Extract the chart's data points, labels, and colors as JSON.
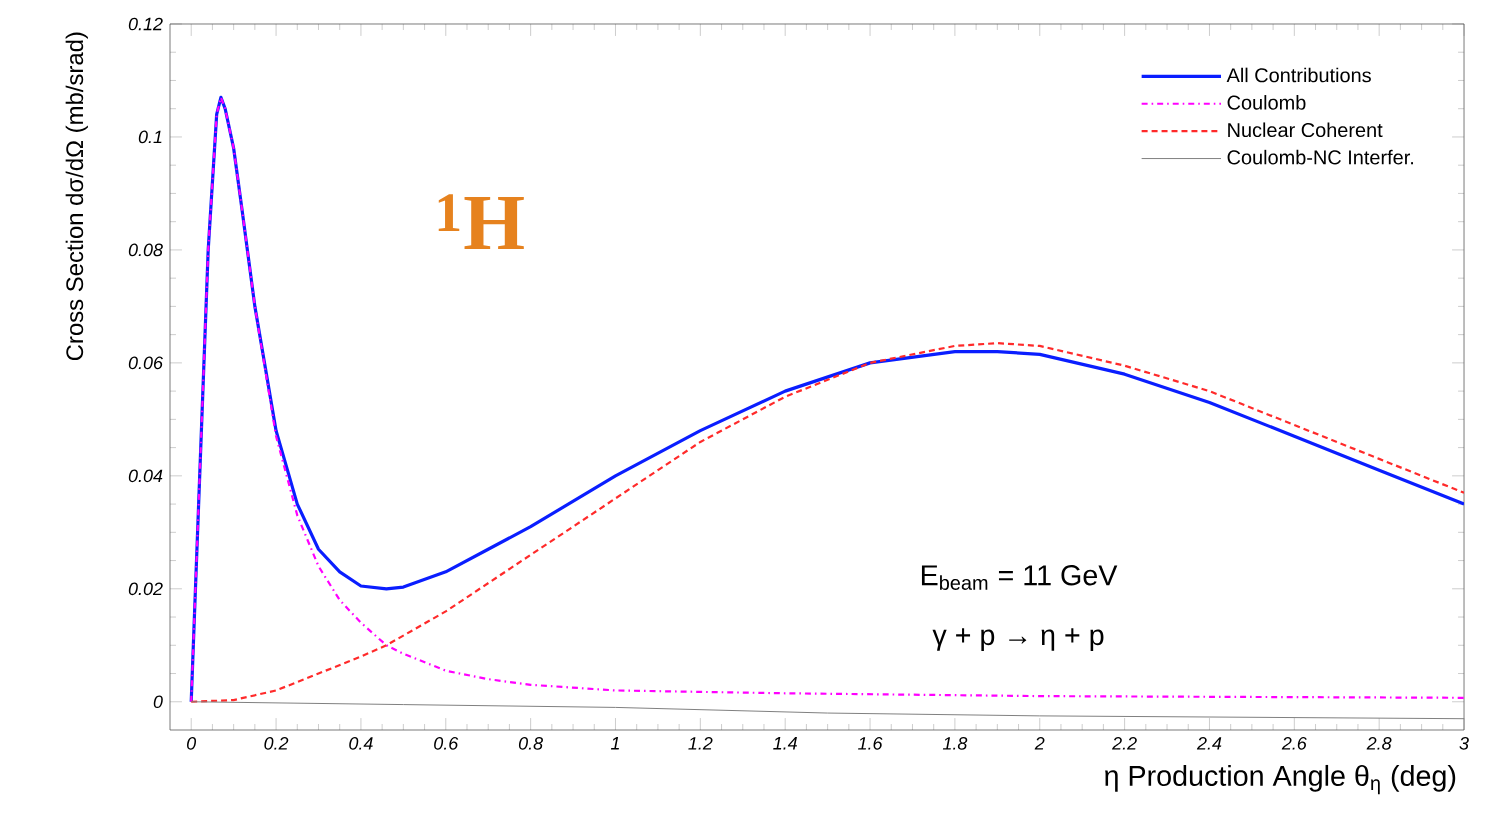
{
  "chart_data": {
    "type": "line",
    "xlabel": "η Production Angle   θ$_{η}$ (deg)",
    "ylabel": "Cross Section dσ/dΩ (mb/srad)",
    "xlim": [
      -0.05,
      3
    ],
    "ylim": [
      -0.005,
      0.12
    ],
    "xticks": [
      0,
      0.2,
      0.4,
      0.6,
      0.8,
      1,
      1.2,
      1.4,
      1.6,
      1.8,
      2,
      2.2,
      2.4,
      2.6,
      2.8,
      3
    ],
    "yticks": [
      0,
      0.02,
      0.04,
      0.06,
      0.08,
      0.1,
      0.12
    ],
    "grid": false,
    "legend": "top right",
    "marker": "none",
    "annotations": [
      "$^{1}$H",
      "E$_{beam}$ = 11 GeV",
      "γ + p  →  η + p"
    ],
    "series": [
      {
        "name": "All Contributions",
        "color": "#0a1eff",
        "line_style": "solid",
        "x": [
          0,
          0.02,
          0.04,
          0.06,
          0.07,
          0.08,
          0.1,
          0.12,
          0.15,
          0.2,
          0.25,
          0.3,
          0.35,
          0.4,
          0.46,
          0.5,
          0.6,
          0.7,
          0.8,
          1.0,
          1.2,
          1.4,
          1.6,
          1.8,
          1.9,
          2.0,
          2.2,
          2.4,
          2.6,
          2.8,
          3.0
        ],
        "values": [
          0,
          0.04,
          0.08,
          0.104,
          0.107,
          0.105,
          0.098,
          0.087,
          0.07,
          0.048,
          0.035,
          0.027,
          0.023,
          0.0205,
          0.02,
          0.0203,
          0.023,
          0.027,
          0.031,
          0.04,
          0.048,
          0.055,
          0.06,
          0.062,
          0.062,
          0.0615,
          0.058,
          0.053,
          0.047,
          0.041,
          0.035
        ]
      },
      {
        "name": "Coulomb",
        "color": "#ff00ff",
        "line_style": "dashdot",
        "x": [
          0,
          0.02,
          0.04,
          0.06,
          0.07,
          0.08,
          0.1,
          0.12,
          0.15,
          0.2,
          0.25,
          0.3,
          0.35,
          0.4,
          0.46,
          0.5,
          0.6,
          0.7,
          0.8,
          1.0,
          1.4,
          2.0,
          3.0
        ],
        "values": [
          0,
          0.04,
          0.08,
          0.104,
          0.107,
          0.105,
          0.098,
          0.087,
          0.07,
          0.047,
          0.033,
          0.024,
          0.018,
          0.014,
          0.01,
          0.0085,
          0.0055,
          0.004,
          0.003,
          0.002,
          0.0015,
          0.001,
          0.0007
        ]
      },
      {
        "name": "Nuclear Coherent",
        "color": "#ff2a2a",
        "line_style": "dashed",
        "x": [
          0,
          0.1,
          0.2,
          0.3,
          0.4,
          0.46,
          0.6,
          0.8,
          1.0,
          1.2,
          1.4,
          1.6,
          1.8,
          1.9,
          2.0,
          2.2,
          2.4,
          2.6,
          2.8,
          3.0
        ],
        "values": [
          0,
          0.0003,
          0.002,
          0.005,
          0.008,
          0.01,
          0.016,
          0.026,
          0.036,
          0.046,
          0.054,
          0.06,
          0.063,
          0.0635,
          0.063,
          0.0595,
          0.055,
          0.049,
          0.043,
          0.037
        ]
      },
      {
        "name": "Coulomb-NC Interfer.",
        "color": "#808080",
        "line_style": "solid",
        "x": [
          0,
          0.5,
          1.0,
          1.5,
          2.0,
          3.0
        ],
        "values": [
          0,
          -0.0005,
          -0.001,
          -0.002,
          -0.0025,
          -0.003
        ]
      }
    ]
  }
}
